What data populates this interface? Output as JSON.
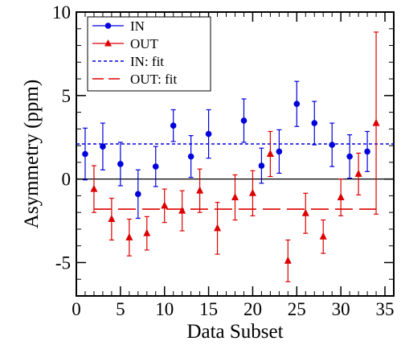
{
  "chart_data": {
    "type": "scatter",
    "xlabel": "Data Subset",
    "ylabel": "Asymmetry  (ppm)",
    "xlim": [
      0,
      36
    ],
    "ylim": [
      -7,
      10
    ],
    "xticks": [
      0,
      5,
      10,
      15,
      20,
      25,
      30,
      35
    ],
    "yticks": [
      -5,
      0,
      5,
      10
    ],
    "grid": false,
    "legend_position": "top-left",
    "zero_line": 0,
    "series": [
      {
        "name": "IN",
        "color": "#0000dd",
        "marker": "circle",
        "x": [
          1,
          3,
          5,
          7,
          9,
          11,
          13,
          15,
          19,
          21,
          23,
          25,
          27,
          29,
          31,
          33
        ],
        "y": [
          1.5,
          1.95,
          0.9,
          -0.9,
          0.75,
          3.2,
          1.35,
          2.7,
          3.5,
          0.8,
          1.65,
          4.5,
          3.35,
          2.05,
          1.35,
          1.65
        ],
        "err": [
          1.55,
          1.4,
          1.3,
          1.45,
          1.2,
          0.95,
          1.25,
          1.45,
          1.3,
          1.05,
          1.3,
          1.35,
          1.3,
          1.3,
          1.3,
          1.2
        ]
      },
      {
        "name": "OUT",
        "color": "#dd0000",
        "marker": "triangle",
        "x": [
          2,
          4,
          6,
          8,
          10,
          12,
          14,
          16,
          18,
          20,
          22,
          24,
          26,
          28,
          30,
          32,
          34
        ],
        "y": [
          -0.6,
          -2.4,
          -3.5,
          -3.25,
          -1.6,
          -1.9,
          -0.7,
          -2.95,
          -1.1,
          -0.85,
          1.5,
          -4.9,
          -2.05,
          -3.45,
          -1.1,
          0.3,
          3.35
        ],
        "err": [
          1.4,
          1.25,
          1.1,
          1.0,
          1.0,
          1.2,
          1.3,
          1.55,
          1.35,
          1.35,
          1.35,
          1.25,
          1.2,
          1.0,
          1.1,
          1.25,
          5.45
        ]
      }
    ],
    "fits": [
      {
        "name": "IN: fit",
        "color": "#0000dd",
        "style": "dotted",
        "y": 2.1,
        "x_range": [
          0,
          36
        ]
      },
      {
        "name": "OUT: fit",
        "color": "#dd0000",
        "style": "dashed",
        "y": -1.8,
        "x_range": [
          2,
          34
        ]
      }
    ]
  }
}
